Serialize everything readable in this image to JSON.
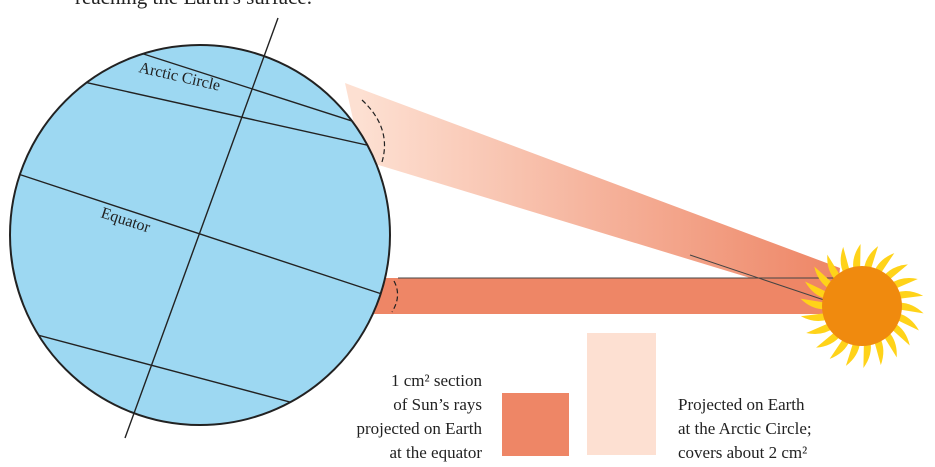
{
  "top_text": "reaching the Earth's surface.",
  "labels": {
    "arctic_circle": "Arctic Circle",
    "equator": "Equator"
  },
  "left_caption": [
    "1 cm² section",
    "of Sun’s rays",
    "projected on Earth",
    "at the equator"
  ],
  "right_caption": [
    "Projected on Earth",
    "at the Arctic Circle;",
    "covers about 2 cm²"
  ],
  "colors": {
    "earth_fill": "#9dd8f2",
    "earth_stroke": "#222222",
    "equator_ray": "#ee8666",
    "arctic_ray_light": "#fde0d2",
    "arctic_ray_dark": "#ee8666",
    "sun_core": "#f08a0e",
    "sun_rays": "#ffd319"
  }
}
